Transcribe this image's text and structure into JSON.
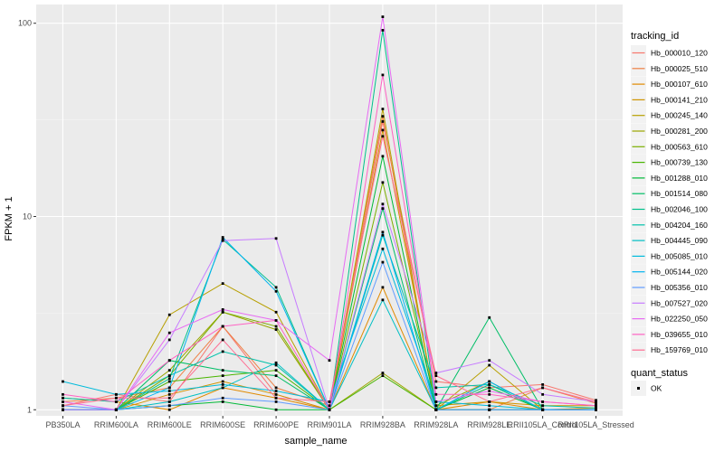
{
  "chart_data": {
    "type": "line",
    "xlabel": "sample_name",
    "ylabel": "FPKM + 1",
    "y_scale": "log10",
    "ylim": [
      0.93,
      125
    ],
    "yticks": [
      1,
      10,
      100
    ],
    "ytick_labels": [
      "1",
      "10",
      "100"
    ],
    "grid": true,
    "legend_position": "right",
    "categories": [
      "PB350LA",
      "RRIM600LA",
      "RRIM600LE",
      "RRIM600SE",
      "RRIM600PE",
      "RRIM901LA",
      "RRIM928BA",
      "RRIM928LA",
      "RRIM928LE",
      "RRII105LA_Control",
      "RRII105LA_Stressed"
    ],
    "category_labels": [
      "PB350LA",
      "RRIM600LA",
      "RRIM600LE",
      "RRIM600SE",
      "RRIM600PE",
      "RRIM901LA",
      "RRIM928BA",
      "RRIM928LA",
      "RRIM928LE",
      "RRII105LA_Control",
      "RRII105LA_Stressed"
    ],
    "series": [
      {
        "name": "Hb_000010_120",
        "color": "#F8766D",
        "values": [
          1.05,
          1.2,
          1.1,
          2.7,
          1.2,
          1.0,
          31.0,
          1.4,
          1.3,
          1.35,
          1.12
        ]
      },
      {
        "name": "Hb_000025_510",
        "color": "#EE8044",
        "values": [
          1.1,
          1.15,
          1.3,
          2.7,
          1.3,
          1.05,
          33.0,
          1.0,
          1.0,
          1.3,
          1.08
        ]
      },
      {
        "name": "Hb_000107_610",
        "color": "#E08A00",
        "values": [
          1.15,
          1.1,
          1.0,
          1.3,
          1.15,
          1.0,
          4.3,
          1.0,
          1.1,
          1.0,
          1.02
        ]
      },
      {
        "name": "Hb_000141_210",
        "color": "#CF9400",
        "values": [
          1.0,
          1.0,
          1.2,
          1.4,
          1.2,
          1.0,
          28.0,
          1.05,
          1.1,
          1.05,
          1.05
        ]
      },
      {
        "name": "Hb_000245_140",
        "color": "#B79F00",
        "values": [
          1.0,
          1.0,
          3.1,
          4.5,
          3.2,
          1.0,
          36.0,
          1.0,
          1.7,
          1.0,
          1.0
        ]
      },
      {
        "name": "Hb_000281_200",
        "color": "#9CA700",
        "values": [
          1.0,
          1.0,
          1.6,
          3.2,
          2.6,
          1.0,
          1.55,
          1.0,
          1.0,
          1.0,
          1.0
        ]
      },
      {
        "name": "Hb_000563_610",
        "color": "#7CAE00",
        "values": [
          1.0,
          1.0,
          1.5,
          3.2,
          2.7,
          1.0,
          15.0,
          1.05,
          1.4,
          1.0,
          1.0
        ]
      },
      {
        "name": "Hb_000739_130",
        "color": "#49B500",
        "values": [
          1.0,
          1.0,
          1.4,
          1.5,
          1.6,
          1.0,
          1.5,
          1.0,
          1.0,
          1.0,
          1.0
        ]
      },
      {
        "name": "Hb_001288_010",
        "color": "#00BA38",
        "values": [
          1.0,
          1.0,
          1.05,
          1.1,
          1.0,
          1.0,
          20.5,
          1.0,
          1.3,
          1.0,
          1.0
        ]
      },
      {
        "name": "Hb_001514_080",
        "color": "#00BE67",
        "values": [
          1.0,
          1.0,
          1.8,
          1.6,
          1.5,
          1.0,
          11.0,
          1.0,
          3.0,
          1.0,
          1.0
        ]
      },
      {
        "name": "Hb_002046_100",
        "color": "#00C08B",
        "values": [
          1.0,
          1.0,
          1.45,
          7.6,
          4.3,
          1.0,
          92.0,
          1.0,
          1.35,
          1.0,
          1.0
        ]
      },
      {
        "name": "Hb_004204_160",
        "color": "#00C1AA",
        "values": [
          1.15,
          1.1,
          1.5,
          2.0,
          1.7,
          1.0,
          8.0,
          1.3,
          1.35,
          1.05,
          1.02
        ]
      },
      {
        "name": "Hb_004445_090",
        "color": "#00BFC4",
        "values": [
          1.0,
          1.0,
          1.1,
          1.3,
          1.75,
          1.0,
          3.7,
          1.0,
          1.0,
          1.0,
          1.0
        ]
      },
      {
        "name": "Hb_005085_010",
        "color": "#00BBDB",
        "values": [
          1.4,
          1.2,
          1.25,
          1.35,
          1.25,
          1.1,
          6.8,
          1.1,
          1.05,
          1.0,
          1.0
        ]
      },
      {
        "name": "Hb_005144_020",
        "color": "#00B4F0",
        "values": [
          1.0,
          1.0,
          1.3,
          7.8,
          4.1,
          1.0,
          8.3,
          1.0,
          1.4,
          1.0,
          1.0
        ]
      },
      {
        "name": "Hb_005356_010",
        "color": "#619CFF",
        "values": [
          1.05,
          1.0,
          1.05,
          1.15,
          1.1,
          1.0,
          5.8,
          1.0,
          1.0,
          1.0,
          1.0
        ]
      },
      {
        "name": "Hb_007527_020",
        "color": "#C77CFF",
        "values": [
          1.0,
          1.0,
          2.3,
          7.5,
          7.7,
          1.0,
          11.6,
          1.55,
          1.8,
          1.2,
          1.1
        ]
      },
      {
        "name": "Hb_022250_050",
        "color": "#E76BF3",
        "values": [
          1.1,
          1.0,
          2.5,
          3.3,
          2.9,
          1.8,
          108.0,
          1.1,
          1.25,
          1.1,
          1.05
        ]
      },
      {
        "name": "Hb_039655_010",
        "color": "#FF61C3",
        "values": [
          1.2,
          1.1,
          1.8,
          2.7,
          2.9,
          1.0,
          54.0,
          1.2,
          1.2,
          1.1,
          1.05
        ]
      },
      {
        "name": "Hb_159769_010",
        "color": "#FF6C91",
        "values": [
          1.05,
          1.15,
          1.15,
          2.3,
          1.15,
          1.1,
          26.0,
          1.5,
          1.1,
          1.3,
          1.1
        ]
      }
    ],
    "legend": {
      "title": "tracking_id",
      "shape_title": "quant_status",
      "shape_items": [
        "OK"
      ]
    },
    "colors": {
      "panel_background": "#EBEBEB",
      "grid_major": "#FFFFFF",
      "point": "#000000"
    }
  }
}
